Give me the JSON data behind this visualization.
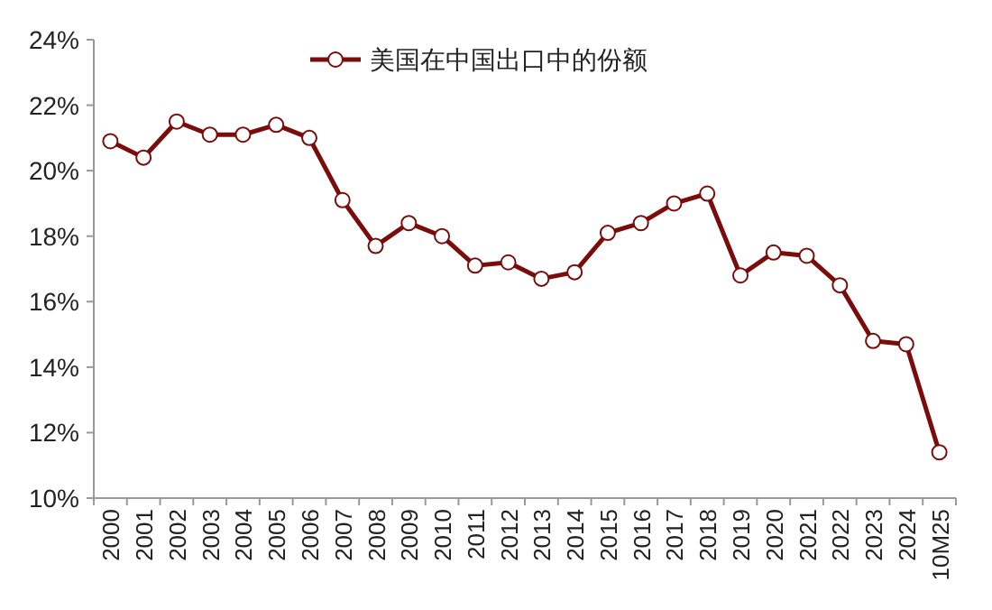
{
  "chart_data": {
    "type": "line",
    "categories": [
      "2000",
      "2001",
      "2002",
      "2003",
      "2004",
      "2005",
      "2006",
      "2007",
      "2008",
      "2009",
      "2010",
      "2011",
      "2012",
      "2013",
      "2014",
      "2015",
      "2016",
      "2017",
      "2018",
      "2019",
      "2020",
      "2021",
      "2022",
      "2023",
      "2024",
      "10M25"
    ],
    "series": [
      {
        "name": "美国在中国出口中的份额",
        "color": "#7b0c0c",
        "values": [
          20.9,
          20.4,
          21.5,
          21.1,
          21.1,
          21.4,
          21.0,
          19.1,
          17.7,
          18.4,
          18.0,
          17.1,
          17.2,
          16.7,
          16.9,
          18.1,
          18.4,
          19.0,
          19.3,
          16.8,
          17.5,
          17.4,
          16.5,
          14.8,
          14.7,
          11.4
        ]
      }
    ],
    "ylim": [
      10,
      24
    ],
    "yticks": [
      {
        "value": 10,
        "label": "10%"
      },
      {
        "value": 12,
        "label": "12%"
      },
      {
        "value": 14,
        "label": "14%"
      },
      {
        "value": 16,
        "label": "16%"
      },
      {
        "value": 18,
        "label": "18%"
      },
      {
        "value": 20,
        "label": "20%"
      },
      {
        "value": 22,
        "label": "22%"
      },
      {
        "value": 24,
        "label": "24%"
      }
    ],
    "grid": false,
    "legend": "top",
    "marker": "circle",
    "line_style": "solid"
  }
}
